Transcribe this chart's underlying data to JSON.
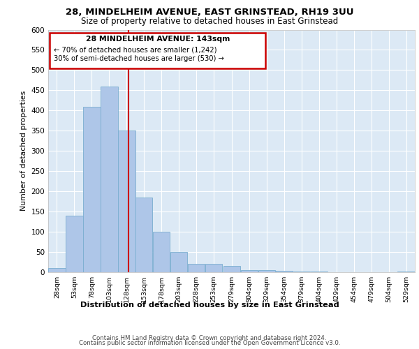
{
  "title1": "28, MINDELHEIM AVENUE, EAST GRINSTEAD, RH19 3UU",
  "title2": "Size of property relative to detached houses in East Grinstead",
  "xlabel": "Distribution of detached houses by size in East Grinstead",
  "ylabel": "Number of detached properties",
  "footer1": "Contains HM Land Registry data © Crown copyright and database right 2024.",
  "footer2": "Contains public sector information licensed under the Open Government Licence v3.0.",
  "annotation_line1": "28 MINDELHEIM AVENUE: 143sqm",
  "annotation_line2": "← 70% of detached houses are smaller (1,242)",
  "annotation_line3": "30% of semi-detached houses are larger (530) →",
  "bar_color": "#aec6e8",
  "bar_edge_color": "#7aaed0",
  "vline_color": "#cc0000",
  "vline_x": 143,
  "annotation_box_color": "#cc0000",
  "categories": [
    28,
    53,
    78,
    103,
    128,
    153,
    178,
    203,
    228,
    253,
    279,
    304,
    329,
    354,
    379,
    404,
    429,
    454,
    479,
    504,
    529
  ],
  "values": [
    10,
    140,
    410,
    460,
    350,
    185,
    100,
    50,
    20,
    20,
    15,
    5,
    5,
    3,
    2,
    1,
    0,
    0,
    0,
    0,
    1
  ],
  "ylim": [
    0,
    600
  ],
  "yticks": [
    0,
    50,
    100,
    150,
    200,
    250,
    300,
    350,
    400,
    450,
    500,
    550,
    600
  ],
  "bin_width": 25,
  "plot_bg_color": "#dce9f5"
}
